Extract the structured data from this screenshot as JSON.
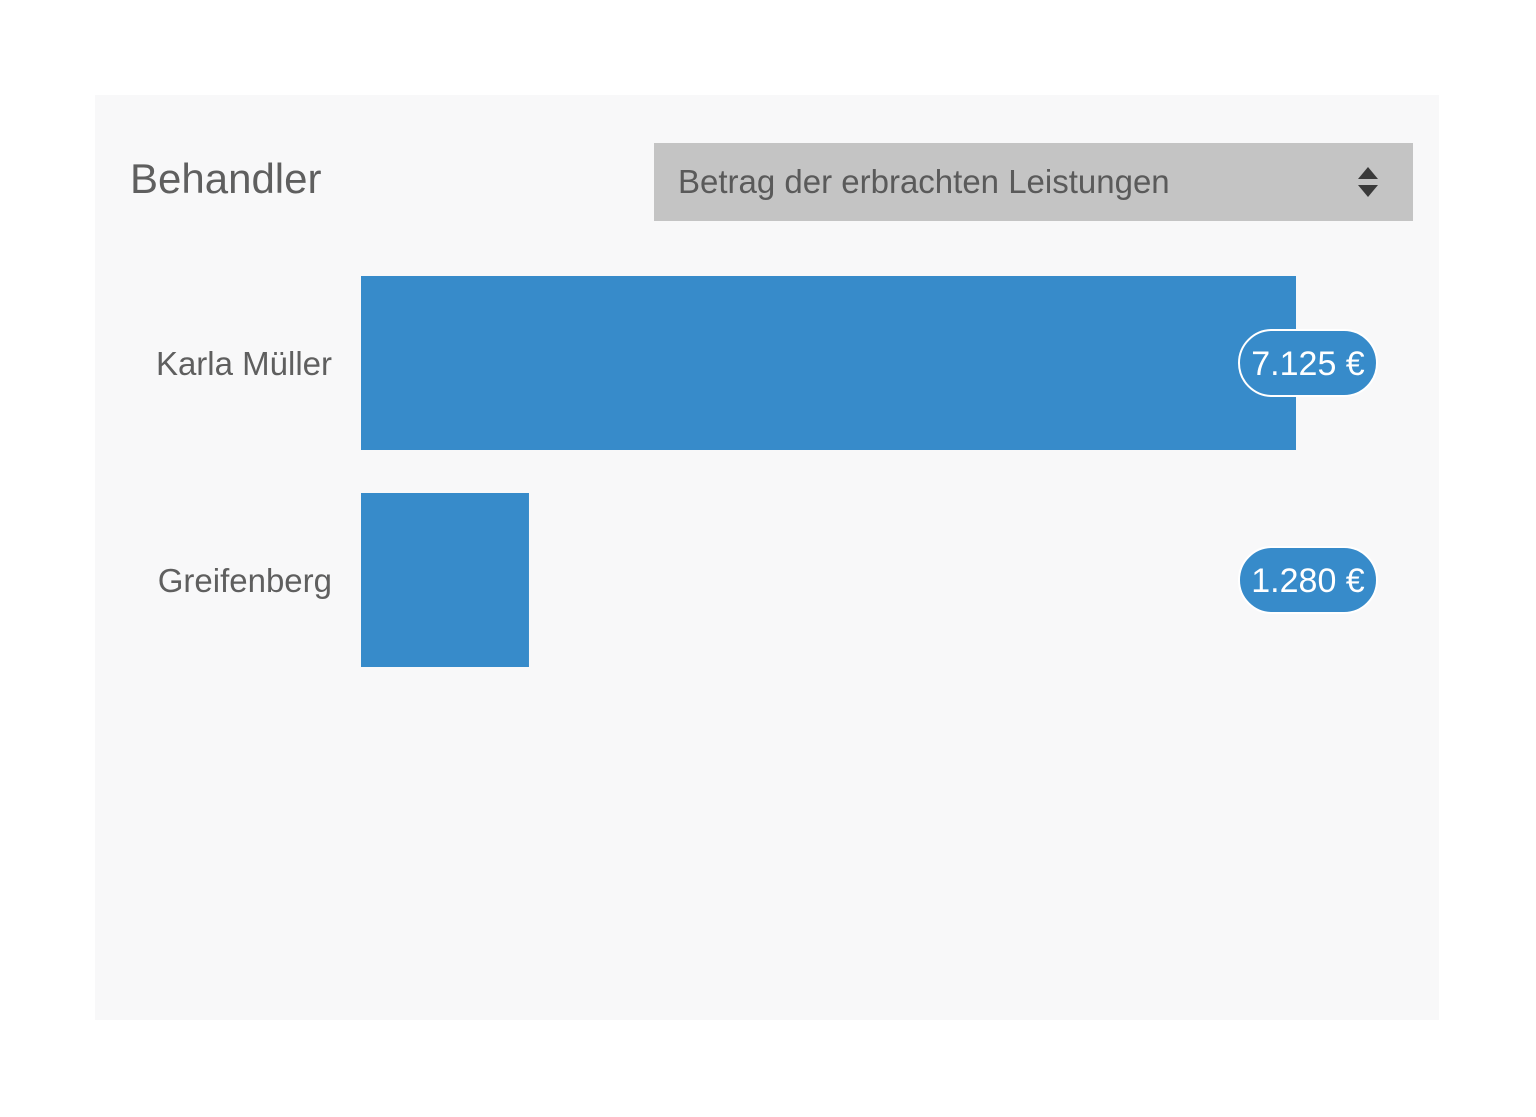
{
  "widget": {
    "title": "Behandler",
    "select": {
      "selected": "Betrag der erbrachten Leistungen",
      "icon": "sort-arrows-icon"
    }
  },
  "colors": {
    "bar": "#378bca",
    "card_background": "#f8f8f9",
    "select_background": "#c4c4c4"
  },
  "chart_data": {
    "type": "bar",
    "orientation": "horizontal",
    "categories": [
      "Karla Müller",
      "Greifenberg"
    ],
    "values": [
      7125,
      1280
    ],
    "value_labels": [
      "7.125 €",
      "1.280 €"
    ],
    "unit": "€"
  }
}
